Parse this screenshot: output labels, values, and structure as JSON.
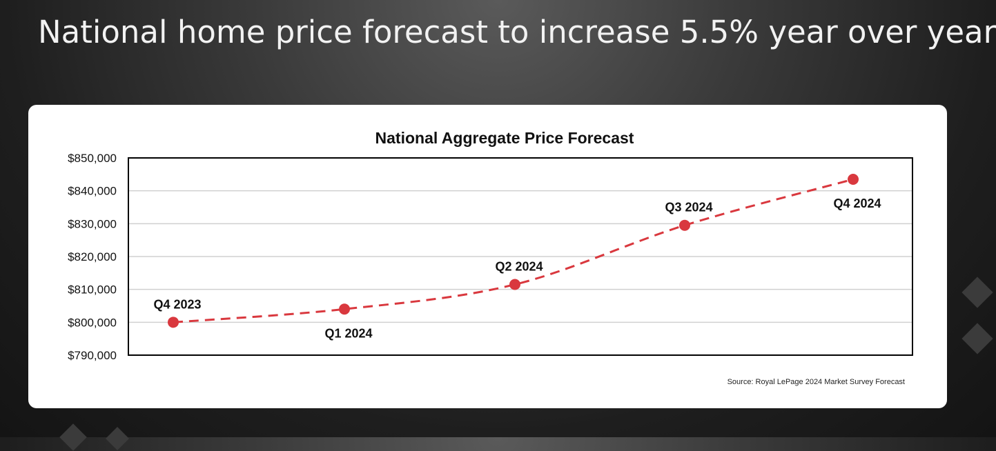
{
  "slide": {
    "title": "National home price forecast to increase 5.5% year over year"
  },
  "chart_data": {
    "type": "line",
    "title": "National Aggregate Price Forecast",
    "x": [
      "Q4 2023",
      "Q1 2024",
      "Q2 2024",
      "Q3 2024",
      "Q4 2024"
    ],
    "series": [
      {
        "values": [
          800000,
          804000,
          811500,
          829500,
          843500
        ],
        "point_labels": [
          "Q4 2023",
          "Q1 2024",
          "Q2 2024",
          "Q3 2024",
          "Q4 2024"
        ],
        "label_position": [
          "above",
          "below",
          "above",
          "above",
          "below"
        ],
        "line_style": "dashed",
        "marker": "circle"
      }
    ],
    "ylim": [
      790000,
      850000
    ],
    "yticks": [
      850000,
      840000,
      830000,
      820000,
      810000,
      800000,
      790000
    ],
    "ytick_labels": [
      "$850,000",
      "$840,000",
      "$830,000",
      "$820,000",
      "$810,000",
      "$800,000",
      "$790,000"
    ],
    "grid": true,
    "source": "Source: Royal LePage 2024 Market Survey Forecast",
    "colors": {
      "line": "#d9383e",
      "grid": "#d0d0d0",
      "axis": "#000000"
    }
  }
}
